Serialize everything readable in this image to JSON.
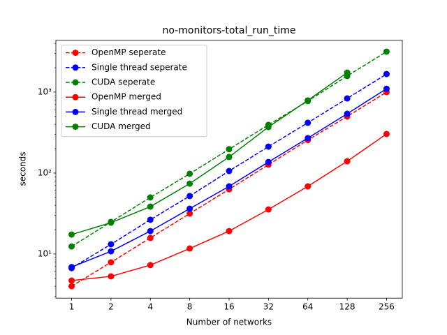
{
  "chart_data": {
    "type": "line",
    "title": "no-monitors-total_run_time",
    "x_label": "Number of networks",
    "y_label": "seconds",
    "x": [
      1,
      2,
      4,
      8,
      16,
      32,
      64,
      128,
      256
    ],
    "xscale": "log2",
    "yscale": "log",
    "xlim": [
      0.758,
      337.8
    ],
    "ylim": [
      2.85,
      4375
    ],
    "xticks": [
      1,
      2,
      4,
      8,
      16,
      32,
      64,
      128,
      256
    ],
    "yticks": [
      {
        "value": 10,
        "label": "10¹"
      },
      {
        "value": 100,
        "label": "10²"
      },
      {
        "value": 1000,
        "label": "10³"
      }
    ],
    "yminorticks": [
      3,
      4,
      5,
      6,
      7,
      8,
      9,
      20,
      30,
      40,
      50,
      60,
      70,
      80,
      90,
      200,
      300,
      400,
      500,
      600,
      700,
      800,
      900,
      2000,
      3000,
      4000
    ],
    "legend": "upper left",
    "series": [
      {
        "name": "OpenMP seperate",
        "color": "#ff0000",
        "dashed": true,
        "values": [
          4.0,
          7.9,
          15.8,
          31.6,
          63,
          127,
          256,
          500,
          1000
        ]
      },
      {
        "name": "Single thread seperate",
        "color": "#0000ff",
        "dashed": true,
        "values": [
          6.7,
          13.2,
          26.5,
          52,
          106,
          212,
          418,
          835,
          1670
        ]
      },
      {
        "name": "CUDA seperate",
        "color": "#008000",
        "dashed": true,
        "values": [
          12.4,
          24.9,
          50,
          98,
          197,
          394,
          775,
          1580,
          3160
        ]
      },
      {
        "name": "OpenMP merged",
        "color": "#ff0000",
        "dashed": false,
        "values": [
          4.7,
          5.3,
          7.3,
          11.7,
          19.2,
          35.5,
          68.5,
          140,
          304
        ]
      },
      {
        "name": "Single thread merged",
        "color": "#0000ff",
        "dashed": false,
        "values": [
          6.9,
          10.8,
          19.2,
          36.3,
          68.5,
          137,
          270,
          540,
          1100
        ]
      },
      {
        "name": "CUDA merged",
        "color": "#008000",
        "dashed": false,
        "values": [
          17.4,
          24.4,
          38.5,
          74,
          158,
          370,
          790,
          1740,
          null
        ]
      }
    ]
  }
}
